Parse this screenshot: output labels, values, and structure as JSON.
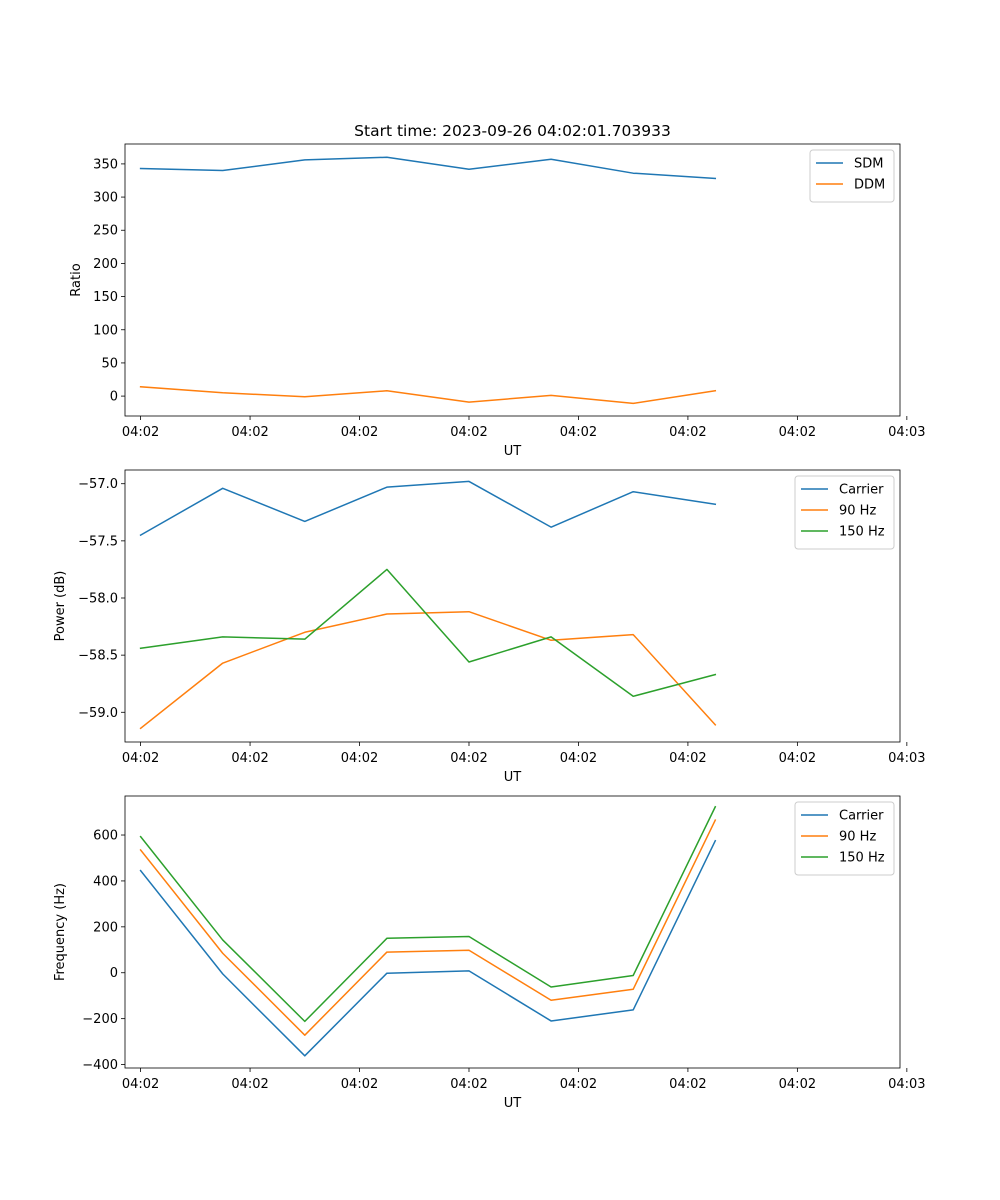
{
  "chart_data": [
    {
      "type": "line",
      "title": "Start time: 2023-09-26 04:02:01.703933",
      "xlabel": "UT",
      "ylabel": "Ratio",
      "x_tick_labels": [
        "04:02",
        "04:02",
        "04:02",
        "04:02",
        "04:02",
        "04:02",
        "04:02",
        "04:03"
      ],
      "xlim": [
        -0.19,
        9.25
      ],
      "x": [
        0,
        1,
        2,
        3,
        4,
        5,
        6,
        7
      ],
      "ylim": [
        -30,
        380
      ],
      "y_ticks": [
        0,
        50,
        100,
        150,
        200,
        250,
        300,
        350
      ],
      "legend_position": "top-right",
      "series": [
        {
          "name": "SDM",
          "color": "#1f77b4",
          "values": [
            343,
            340,
            356,
            360,
            342,
            357,
            336,
            328
          ]
        },
        {
          "name": "DDM",
          "color": "#ff7f0e",
          "values": [
            14,
            5,
            -1,
            8,
            -9,
            1,
            -11,
            8
          ]
        }
      ]
    },
    {
      "type": "line",
      "title": "",
      "xlabel": "UT",
      "ylabel": "Power (dB)",
      "x_tick_labels": [
        "04:02",
        "04:02",
        "04:02",
        "04:02",
        "04:02",
        "04:02",
        "04:02",
        "04:03"
      ],
      "xlim": [
        -0.19,
        9.25
      ],
      "x": [
        0,
        1,
        2,
        3,
        4,
        5,
        6,
        7
      ],
      "ylim": [
        -59.26,
        -56.88
      ],
      "y_ticks": [
        -59.0,
        -58.5,
        -58.0,
        -57.5,
        -57.0
      ],
      "legend_position": "top-right",
      "series": [
        {
          "name": "Carrier",
          "color": "#1f77b4",
          "values": [
            -57.45,
            -57.04,
            -57.33,
            -57.03,
            -56.98,
            -57.38,
            -57.07,
            -57.18
          ]
        },
        {
          "name": "90 Hz",
          "color": "#ff7f0e",
          "values": [
            -59.14,
            -58.57,
            -58.3,
            -58.14,
            -58.12,
            -58.37,
            -58.32,
            -59.11
          ]
        },
        {
          "name": "150 Hz",
          "color": "#2ca02c",
          "values": [
            -58.44,
            -58.34,
            -58.36,
            -57.75,
            -58.56,
            -58.34,
            -58.86,
            -58.67
          ]
        }
      ]
    },
    {
      "type": "line",
      "title": "",
      "xlabel": "UT",
      "ylabel": "Frequency (Hz)",
      "x_tick_labels": [
        "04:02",
        "04:02",
        "04:02",
        "04:02",
        "04:02",
        "04:02",
        "04:02",
        "04:03"
      ],
      "xlim": [
        -0.19,
        9.25
      ],
      "x": [
        0,
        1,
        2,
        3,
        4,
        5,
        6,
        7
      ],
      "ylim": [
        -415,
        770
      ],
      "y_ticks": [
        -400,
        -200,
        0,
        200,
        400,
        600
      ],
      "legend_position": "top-right",
      "series": [
        {
          "name": "Carrier",
          "color": "#1f77b4",
          "values": [
            445,
            -5,
            -362,
            -2,
            8,
            -210,
            -162,
            575
          ]
        },
        {
          "name": "90 Hz",
          "color": "#ff7f0e",
          "values": [
            535,
            85,
            -272,
            90,
            98,
            -120,
            -72,
            665
          ]
        },
        {
          "name": "150 Hz",
          "color": "#2ca02c",
          "values": [
            593,
            143,
            -212,
            150,
            158,
            -62,
            -12,
            723
          ]
        }
      ]
    }
  ]
}
